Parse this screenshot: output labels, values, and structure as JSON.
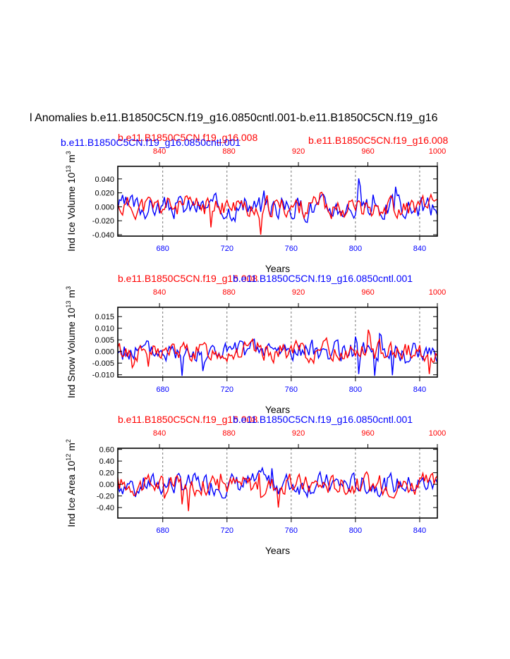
{
  "page": {
    "title": "l Anomalies b.e11.B1850C5CN.f19_g16.0850cntl.001-b.e11.B1850C5CN.f19_g16",
    "legend_blue_top": "b.e11.B1850C5CN.f19_g16.0850cntl.001",
    "legend_red_top": "b.e11.B1850C5CN.f19_g16.008"
  },
  "colors": {
    "series_a": "#0000ff",
    "series_b": "#ff0000",
    "axis": "#000000"
  },
  "chart_data": [
    {
      "type": "line",
      "ylabel": "Ind Ice Volume 10",
      "ylabel_exp": "13",
      "ylabel_unit": " m",
      "ylabel_unit_exp": "3",
      "xlabel": "Years",
      "ylim": [
        -0.042,
        0.058
      ],
      "yticks": [
        -0.04,
        -0.02,
        0.0,
        0.02,
        0.04
      ],
      "ytick_labels": [
        "-0.040",
        "-0.020",
        "0.000",
        "0.020",
        "0.040"
      ],
      "subtitle_red": "b.e11.B1850C5CN.f19_g16.008",
      "subtitle_blue": "b.e11.B1850C5CN.f19_g16.0850cntl.001",
      "series": [
        {
          "name": "b.e11.B1850C5CN.f19_g16.0850cntl.001",
          "color": "blue",
          "amp": 0.014,
          "spike_scale": 1.0,
          "seed": 3
        },
        {
          "name": "b.e11.B1850C5CN.f19_g16.008",
          "color": "red",
          "amp": 0.013,
          "spike_scale": 1.0,
          "seed": 11
        }
      ]
    },
    {
      "type": "line",
      "ylabel": "Ind Snow Volume 10",
      "ylabel_exp": "13",
      "ylabel_unit": " m",
      "ylabel_unit_exp": "3",
      "xlabel": "Years",
      "ylim": [
        -0.011,
        0.019
      ],
      "yticks": [
        -0.01,
        -0.005,
        0.0,
        0.005,
        0.01,
        0.015
      ],
      "ytick_labels": [
        "-0.010",
        "-0.005",
        "0.000",
        "0.005",
        "0.010",
        "0.015"
      ],
      "subtitle_red": "b.e11.B1850C5CN.f19_g16.008",
      "subtitle_blue": "b.e11.B1850C5CN.f19_g16.0850cntl.001",
      "series": [
        {
          "name": "b.e11.B1850C5CN.f19_g16.0850cntl.001",
          "color": "blue",
          "amp": 0.0038,
          "spike_scale": 0.3,
          "seed": 5
        },
        {
          "name": "b.e11.B1850C5CN.f19_g16.008",
          "color": "red",
          "amp": 0.0036,
          "spike_scale": 0.3,
          "seed": 13
        }
      ]
    },
    {
      "type": "line",
      "ylabel": "Ind Ice Area 10",
      "ylabel_exp": "12",
      "ylabel_unit": " m",
      "ylabel_unit_exp": "2",
      "xlabel": "Years",
      "ylim": [
        -0.58,
        0.62
      ],
      "yticks": [
        -0.4,
        -0.2,
        0.0,
        0.2,
        0.4,
        0.6
      ],
      "ytick_labels": [
        "-0.40",
        "-0.20",
        "0.00",
        "0.20",
        "0.40",
        "0.60"
      ],
      "subtitle_red": "b.e11.B1850C5CN.f19_g16.008",
      "subtitle_blue": "b.e11.B1850C5CN.f19_g16.0850cntl.001",
      "series": [
        {
          "name": "b.e11.B1850C5CN.f19_g16.0850cntl.001",
          "color": "blue",
          "amp": 0.16,
          "spike_scale": 11.0,
          "seed": 7
        },
        {
          "name": "b.e11.B1850C5CN.f19_g16.008",
          "color": "red",
          "amp": 0.15,
          "spike_scale": 11.0,
          "seed": 17
        }
      ]
    }
  ],
  "axes_common": {
    "bottom_xlim": [
      652,
      851
    ],
    "bottom_ticks": [
      680,
      720,
      760,
      800,
      840
    ],
    "top_xlim": [
      816,
      1000
    ],
    "top_ticks": [
      840,
      880,
      920,
      960,
      1000
    ]
  }
}
